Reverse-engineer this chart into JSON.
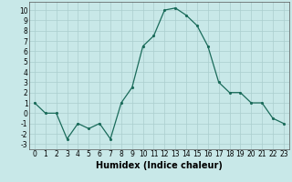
{
  "x": [
    0,
    1,
    2,
    3,
    4,
    5,
    6,
    7,
    8,
    9,
    10,
    11,
    12,
    13,
    14,
    15,
    16,
    17,
    18,
    19,
    20,
    21,
    22,
    23
  ],
  "y": [
    1,
    0,
    0,
    -2.5,
    -1,
    -1.5,
    -1,
    -2.5,
    1,
    2.5,
    6.5,
    7.5,
    10,
    10.2,
    9.5,
    8.5,
    6.5,
    3,
    2,
    2,
    1,
    1,
    -0.5,
    -1
  ],
  "line_color": "#1a6b5a",
  "marker_color": "#1a6b5a",
  "bg_color": "#c8e8e8",
  "grid_color": "#aacece",
  "xlabel": "Humidex (Indice chaleur)",
  "xlim": [
    -0.5,
    23.5
  ],
  "ylim": [
    -3.5,
    10.8
  ],
  "yticks": [
    -3,
    -2,
    -1,
    0,
    1,
    2,
    3,
    4,
    5,
    6,
    7,
    8,
    9,
    10
  ],
  "xticks": [
    0,
    1,
    2,
    3,
    4,
    5,
    6,
    7,
    8,
    9,
    10,
    11,
    12,
    13,
    14,
    15,
    16,
    17,
    18,
    19,
    20,
    21,
    22,
    23
  ],
  "tick_fontsize": 5.5,
  "label_fontsize": 7
}
